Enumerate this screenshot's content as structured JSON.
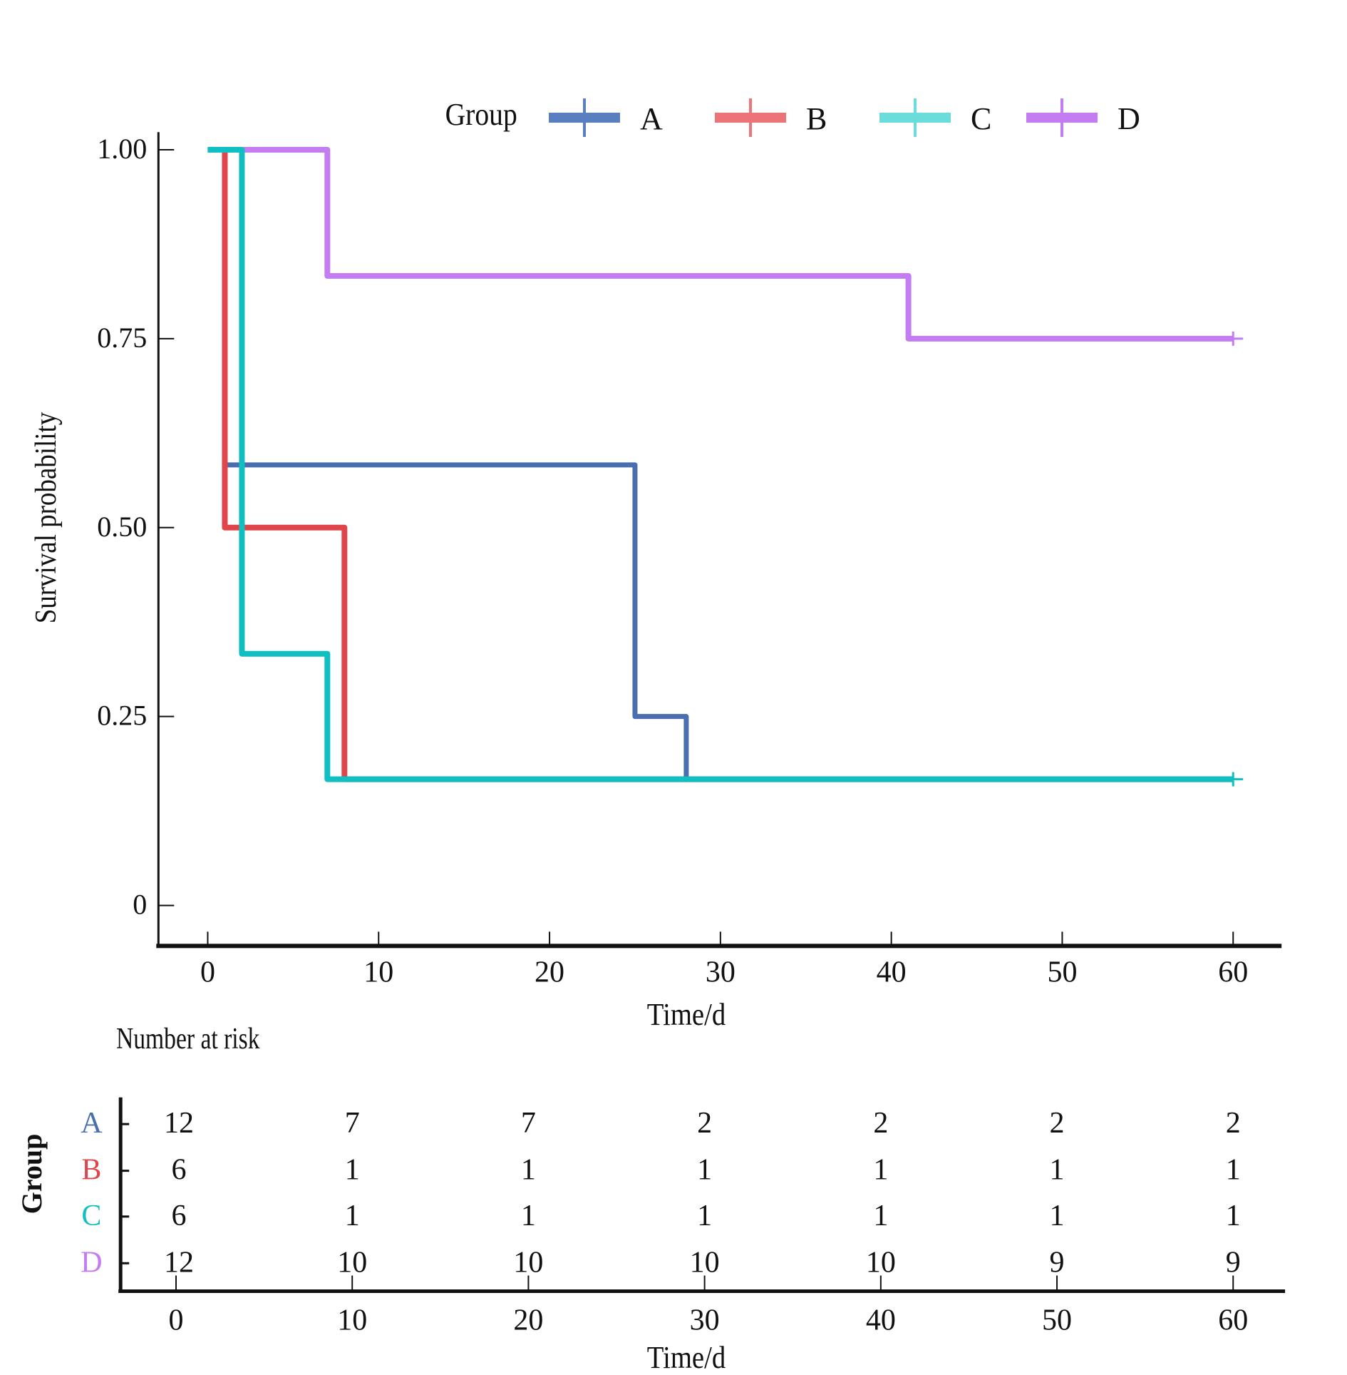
{
  "chart_data": {
    "type": "line",
    "subtype": "kaplan-meier step",
    "title": "",
    "xlabel": "Time/d",
    "ylabel": "Survival probability",
    "xlim": [
      0,
      60
    ],
    "ylim": [
      0,
      1
    ],
    "x_ticks": [
      0,
      10,
      20,
      30,
      40,
      50,
      60
    ],
    "x_tick_labels": [
      "0",
      "10",
      "20",
      "30",
      "40",
      "50",
      "60"
    ],
    "y_ticks": [
      0,
      0.25,
      0.5,
      0.75,
      1.0
    ],
    "y_tick_labels": [
      "0",
      "0.25",
      "0.50",
      "0.75",
      "1.00"
    ],
    "grid": false,
    "legend": {
      "title": "Group",
      "placement": "top",
      "entries": [
        "A",
        "B",
        "C",
        "D"
      ]
    },
    "series": [
      {
        "name": "A",
        "color": "#4a6fb0",
        "steps": [
          [
            0,
            1.0
          ],
          [
            1,
            0.583
          ],
          [
            25,
            0.25
          ],
          [
            28,
            0.167
          ],
          [
            60,
            0.167
          ]
        ],
        "censored": []
      },
      {
        "name": "B",
        "color": "#e0454b",
        "steps": [
          [
            0,
            1.0
          ],
          [
            1,
            0.5
          ],
          [
            8,
            0.167
          ],
          [
            60,
            0.167
          ]
        ],
        "censored": []
      },
      {
        "name": "C",
        "color": "#10bfc2",
        "steps": [
          [
            0,
            1.0
          ],
          [
            2,
            0.333
          ],
          [
            7,
            0.167
          ],
          [
            60,
            0.167
          ]
        ],
        "censored": [
          60
        ]
      },
      {
        "name": "D",
        "color": "#c47cf2",
        "steps": [
          [
            0,
            1.0
          ],
          [
            7,
            0.833
          ],
          [
            41,
            0.75
          ],
          [
            60,
            0.75
          ]
        ],
        "censored": [
          60
        ]
      }
    ],
    "legend_colors": {
      "A": "#5a7fc0",
      "B": "#ec7378",
      "C": "#6bdcdc",
      "D": "#c47cf2"
    },
    "risk_table": {
      "title": "Number at risk",
      "ylabel": "Group",
      "xlabel": "Time/d",
      "times": [
        0,
        10,
        20,
        30,
        40,
        50,
        60
      ],
      "time_labels": [
        "0",
        "10",
        "20",
        "30",
        "40",
        "50",
        "60"
      ],
      "rows": [
        {
          "group": "A",
          "color": "#4a6fb0",
          "values": [
            "12",
            "7",
            "7",
            "2",
            "2",
            "2",
            "2"
          ]
        },
        {
          "group": "B",
          "color": "#e0454b",
          "values": [
            "6",
            "1",
            "1",
            "1",
            "1",
            "1",
            "1"
          ]
        },
        {
          "group": "C",
          "color": "#10bfc2",
          "values": [
            "6",
            "1",
            "1",
            "1",
            "1",
            "1",
            "1"
          ]
        },
        {
          "group": "D",
          "color": "#c47cf2",
          "values": [
            "12",
            "10",
            "10",
            "10",
            "10",
            "9",
            "9"
          ]
        }
      ]
    }
  }
}
